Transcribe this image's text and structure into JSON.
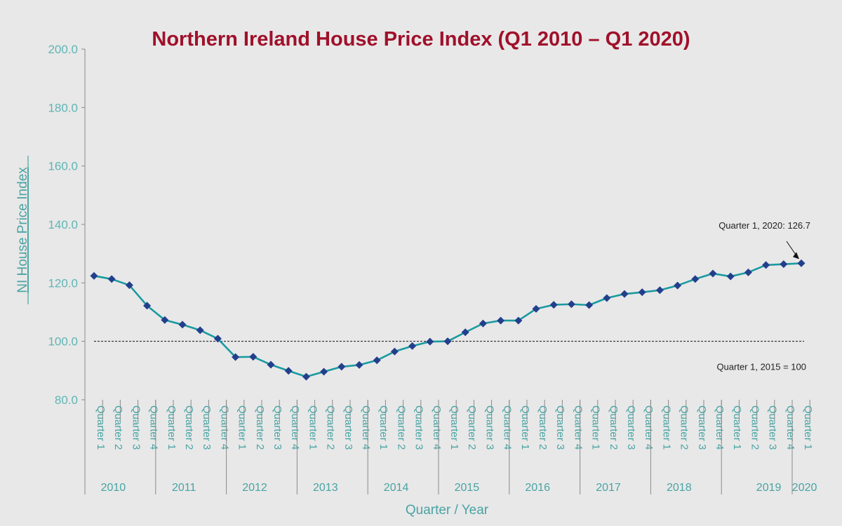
{
  "chart_data": {
    "type": "line",
    "title": "Northern Ireland House Price Index (Q1 2010 – Q1 2020)",
    "xlabel": "Quarter / Year",
    "ylabel": "NI House Price Index",
    "ylim": [
      80,
      200
    ],
    "yticks": [
      "80.0",
      "100.0",
      "120.0",
      "140.0",
      "160.0",
      "180.0",
      "200.0"
    ],
    "quarter_labels": [
      "Quarter 1",
      "Quarter 2",
      "Quarter 3",
      "Quarter 4",
      "Quarter 1",
      "Quarter 2",
      "Quarter 3",
      "Quarter 4",
      "Quarter 1",
      "Quarter 2",
      "Quarter 3",
      "Quarter 4",
      "Quarter 1",
      "Quarter 2",
      "Quarter 3",
      "Quarter 4",
      "Quarter 1",
      "Quarter 2",
      "Quarter 3",
      "Quarter 4",
      "Quarter 1",
      "Quarter 2",
      "Quarter 3",
      "Quarter 4",
      "Quarter 1",
      "Quarter 2",
      "Quarter 3",
      "Quarter 4",
      "Quarter 1",
      "Quarter 2",
      "Quarter 3",
      "Quarter 4",
      "Quarter 1",
      "Quarter 2",
      "Quarter 3",
      "Quarter 4",
      "Quarter 1",
      "Quarter 2",
      "Quarter 3",
      "Quarter 4",
      "Quarter 1"
    ],
    "years": [
      "2010",
      "2011",
      "2012",
      "2013",
      "2014",
      "2015",
      "2016",
      "2017",
      "2018",
      "2019",
      "2020"
    ],
    "values": [
      122.4,
      121.3,
      119.2,
      112.2,
      107.3,
      105.7,
      103.8,
      100.9,
      94.6,
      94.7,
      92.0,
      89.9,
      87.9,
      89.6,
      91.3,
      91.9,
      93.5,
      96.5,
      98.4,
      99.9,
      100.0,
      103.1,
      106.1,
      107.1,
      107.1,
      111.1,
      112.5,
      112.7,
      112.4,
      114.8,
      116.2,
      116.8,
      117.5,
      119.1,
      121.3,
      123.2,
      122.2,
      123.6,
      126.1,
      126.4,
      126.7
    ],
    "reference_line": {
      "value": 100,
      "label": "Quarter 1, 2015 = 100"
    },
    "callout": {
      "label": "Quarter 1, 2020: 126.7"
    },
    "colors": {
      "line": "#1a9aa0",
      "marker": "#233f8c",
      "axis_text": "#4aa3a3",
      "title": "#a0102a"
    }
  }
}
